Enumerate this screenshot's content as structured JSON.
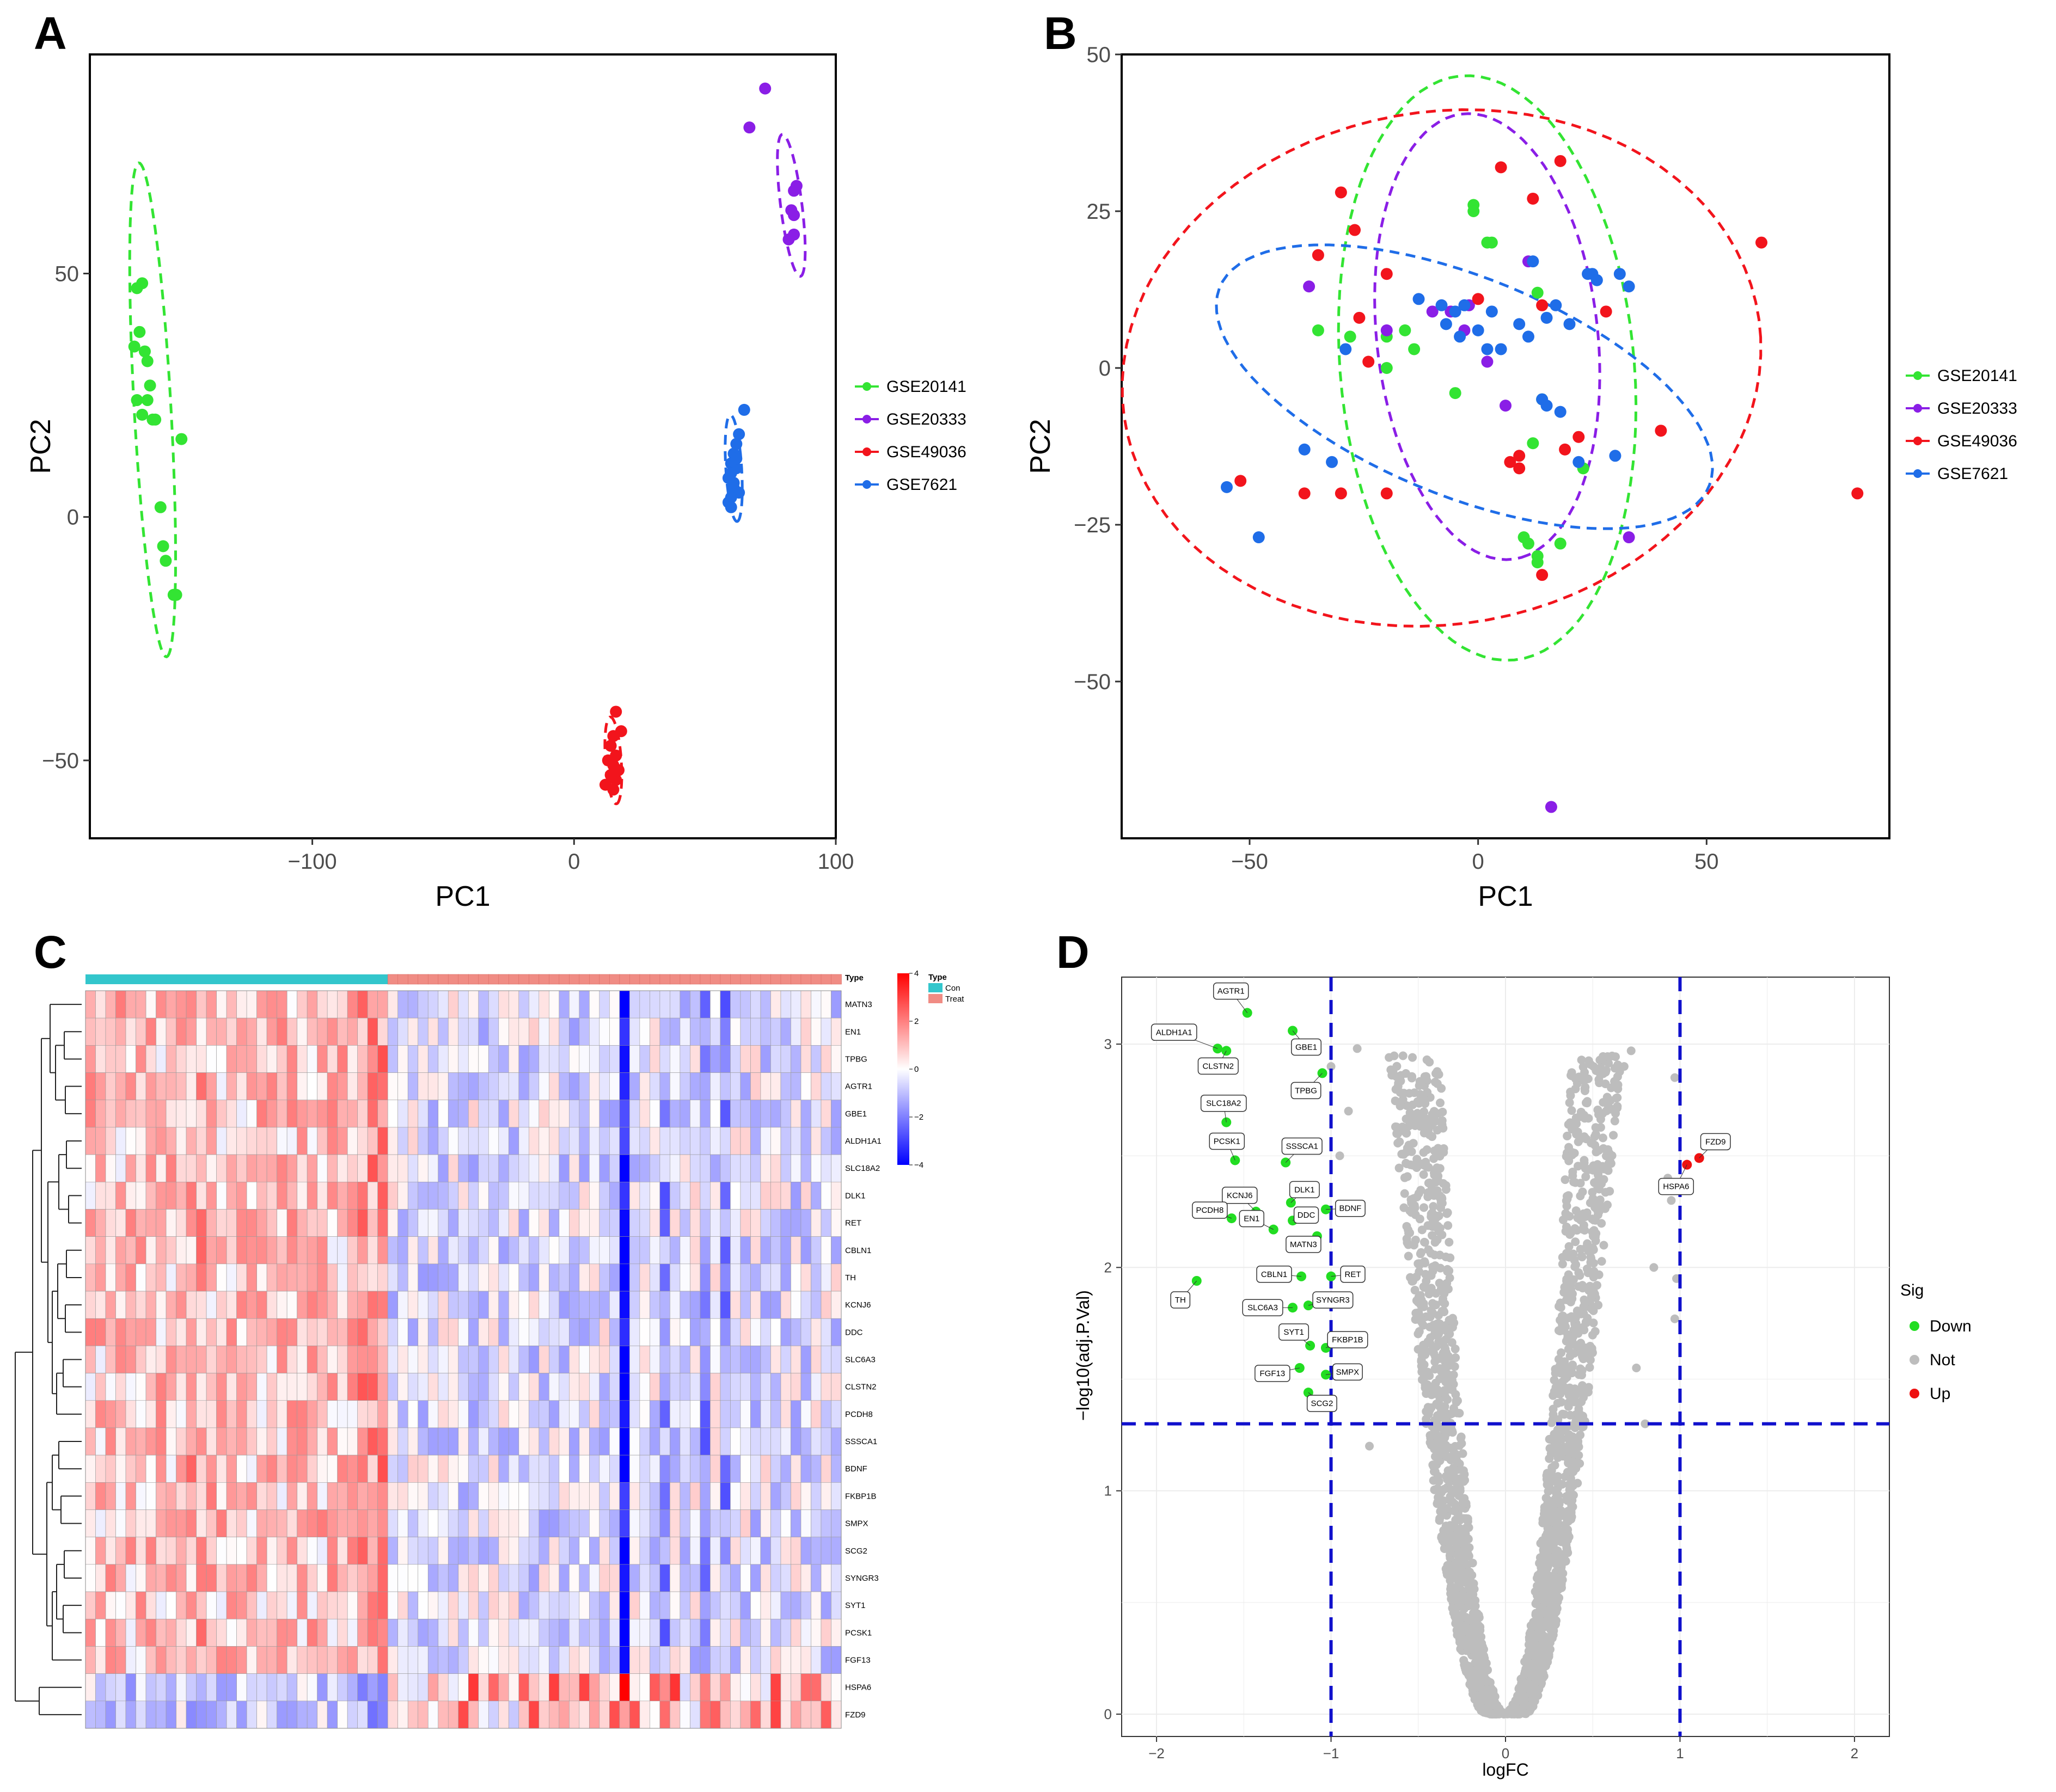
{
  "panels": {
    "A": {
      "label": "A"
    },
    "B": {
      "label": "B"
    },
    "C": {
      "label": "C"
    },
    "D": {
      "label": "D"
    }
  },
  "colors": {
    "GSE20141": "#33e433",
    "GSE20333": "#8a1ee6",
    "GSE49036": "#f2141c",
    "GSE7621": "#1f6de8",
    "Down": "#22dd22",
    "Not": "#bdbdbd",
    "Up": "#ee1111",
    "Con": "#33c6cc",
    "Treat": "#f08c84",
    "hm_high": "#ff0000",
    "hm_mid": "#ffffff",
    "hm_low": "#0000ff",
    "guide": "#1010cc"
  },
  "chart_data": [
    {
      "id": "A",
      "type": "scatter",
      "xlabel": "PC1",
      "ylabel": "PC2",
      "xlim": [
        -185,
        100
      ],
      "ylim": [
        -66,
        95
      ],
      "xticks": [
        -100,
        0,
        100
      ],
      "xtick_labels": [
        "−100",
        "0",
        "100"
      ],
      "yticks": [
        -50,
        0,
        50
      ],
      "ytick_labels": [
        "−50",
        "0",
        "50"
      ],
      "legend": [
        "GSE20141",
        "GSE20333",
        "GSE49036",
        "GSE7621"
      ],
      "series": [
        {
          "name": "GSE20141",
          "x": [
            -167,
            -165,
            -166,
            -164,
            -163,
            -168,
            -162,
            -163,
            -160,
            -165,
            -167,
            -161,
            -150,
            -158,
            -157,
            -156,
            -153,
            -152
          ],
          "y": [
            47,
            48,
            38,
            34,
            32,
            35,
            27,
            24,
            20,
            21,
            24,
            20,
            16,
            2,
            -6,
            -9,
            -16,
            -16
          ],
          "ellipse": {
            "cx": -161,
            "cy": 22,
            "rx": 51,
            "ry": 7,
            "angle": -84
          }
        },
        {
          "name": "GSE20333",
          "x": [
            73,
            67,
            84,
            85,
            83,
            84,
            84,
            82
          ],
          "y": [
            88,
            80,
            67,
            68,
            63,
            62,
            58,
            57
          ],
          "ellipse": {
            "cx": 83,
            "cy": 64,
            "rx": 15,
            "ry": 4,
            "angle": -76
          }
        },
        {
          "name": "GSE49036",
          "x": [
            16,
            18,
            15,
            14,
            16,
            13,
            15,
            17,
            14,
            12,
            15,
            16
          ],
          "y": [
            -40,
            -44,
            -45,
            -47,
            -49,
            -50,
            -51,
            -52,
            -53,
            -55,
            -56,
            -54
          ],
          "ellipse": {
            "cx": 15,
            "cy": -50,
            "rx": 9,
            "ry": 3,
            "angle": -82
          }
        },
        {
          "name": "GSE7621",
          "x": [
            65,
            63,
            62,
            61,
            60,
            62,
            60,
            59,
            61,
            63,
            60,
            59,
            62,
            61,
            60
          ],
          "y": [
            22,
            17,
            15,
            13,
            11,
            10,
            9,
            8,
            6,
            5,
            4,
            3,
            12,
            7,
            2
          ],
          "ellipse": {
            "cx": 61,
            "cy": 10,
            "rx": 11,
            "ry": 3,
            "angle": -83
          }
        }
      ]
    },
    {
      "id": "B",
      "type": "scatter",
      "xlabel": "PC1",
      "ylabel": "PC2",
      "xlim": [
        -78,
        90
      ],
      "ylim": [
        -75,
        50
      ],
      "xticks": [
        -50,
        0,
        50
      ],
      "xtick_labels": [
        "−50",
        "0",
        "50"
      ],
      "yticks": [
        -50,
        -25,
        0,
        25,
        50
      ],
      "ytick_labels": [
        "−50",
        "−25",
        "0",
        "25",
        "50"
      ],
      "legend": [
        "GSE20141",
        "GSE20333",
        "GSE49036",
        "GSE7621"
      ],
      "series": [
        {
          "name": "GSE20141",
          "x": [
            -1,
            -1,
            2,
            3,
            -35,
            -28,
            -14,
            -5,
            -20,
            14,
            13,
            12,
            10,
            11,
            13,
            23,
            18,
            13,
            -16,
            -20
          ],
          "y": [
            26,
            25,
            20,
            20,
            6,
            5,
            3,
            -4,
            5,
            -5,
            12,
            -12,
            -27,
            -28,
            -30,
            -16,
            -28,
            -31,
            6,
            0
          ],
          "ellipse": {
            "cx": 2,
            "cy": 0,
            "rx": 47,
            "ry": 32,
            "angle": -80
          }
        },
        {
          "name": "GSE20333",
          "x": [
            -37,
            -10,
            -2,
            6,
            11,
            -6,
            -20,
            -3,
            16,
            2,
            33
          ],
          "y": [
            13,
            9,
            10,
            -6,
            17,
            9,
            6,
            6,
            -70,
            1,
            -27
          ],
          "ellipse": {
            "cx": 2,
            "cy": 5,
            "rx": 36,
            "ry": 24,
            "angle": -78
          }
        },
        {
          "name": "GSE49036",
          "x": [
            -30,
            -27,
            -20,
            -26,
            -24,
            0,
            5,
            9,
            12,
            19,
            22,
            18,
            28,
            40,
            62,
            83,
            -52,
            -38,
            -30,
            -20,
            9,
            7,
            14,
            14,
            -35
          ],
          "y": [
            28,
            22,
            15,
            8,
            1,
            11,
            32,
            -14,
            27,
            -13,
            -11,
            33,
            9,
            -10,
            20,
            -20,
            -18,
            -20,
            -20,
            -20,
            -16,
            -15,
            -33,
            10,
            18
          ],
          "ellipse": {
            "cx": -8,
            "cy": 0,
            "rx": 70,
            "ry": 41,
            "angle": 4
          }
        },
        {
          "name": "GSE7621",
          "x": [
            -55,
            -48,
            -38,
            -32,
            -29,
            -3,
            -5,
            2,
            5,
            9,
            11,
            14,
            15,
            17,
            18,
            22,
            25,
            26,
            31,
            33,
            -13,
            -7,
            -4,
            0,
            3,
            12,
            15,
            20,
            24,
            30,
            -8
          ],
          "y": [
            -19,
            -27,
            -13,
            -15,
            3,
            10,
            9,
            3,
            3,
            7,
            5,
            -5,
            -6,
            10,
            -7,
            -15,
            15,
            14,
            15,
            13,
            11,
            7,
            5,
            6,
            9,
            17,
            8,
            7,
            15,
            -14,
            10
          ],
          "ellipse": {
            "cx": -3,
            "cy": -3,
            "rx": 56,
            "ry": 18,
            "angle": -15
          }
        }
      ]
    },
    {
      "id": "C",
      "type": "heatmap",
      "genes": [
        "MATN3",
        "EN1",
        "TPBG",
        "AGTR1",
        "GBE1",
        "ALDH1A1",
        "SLC18A2",
        "DLK1",
        "RET",
        "CBLN1",
        "TH",
        "KCNJ6",
        "DDC",
        "SLC6A3",
        "CLSTN2",
        "PCDH8",
        "SSSCA1",
        "BDNF",
        "FKBP1B",
        "SMPX",
        "SCG2",
        "SYNGR3",
        "SYT1",
        "PCSK1",
        "FGF13",
        "HSPA6",
        "FZD9"
      ],
      "n_con": 30,
      "n_treat": 45,
      "annotation_title": "Type",
      "legend_title": "Type",
      "legend_items": [
        "Con",
        "Treat"
      ],
      "scale_ticks": [
        4,
        2,
        0,
        -2,
        -4
      ],
      "scale_labels": [
        "4",
        "2",
        "0",
        "−2",
        "−4"
      ]
    },
    {
      "id": "D",
      "type": "scatter",
      "subtype": "volcano",
      "xlabel": "logFC",
      "ylabel": "−log10(adj.P.Val)",
      "xlim": [
        -2.2,
        2.2
      ],
      "ylim": [
        -0.1,
        3.3
      ],
      "xticks": [
        -2,
        -1,
        0,
        1,
        2
      ],
      "xtick_labels": [
        "−2",
        "−1",
        "0",
        "1",
        "2"
      ],
      "yticks": [
        0,
        1,
        2,
        3
      ],
      "ytick_labels": [
        "0",
        "1",
        "2",
        "3"
      ],
      "logfc_cutoff": 1,
      "p_cutoff": 1.3,
      "legend_title": "Sig",
      "legend": [
        "Down",
        "Not",
        "Up"
      ],
      "down_genes": [
        {
          "gene": "AGTR1",
          "x": -1.48,
          "y": 3.14
        },
        {
          "gene": "ALDH1A1",
          "x": -1.65,
          "y": 2.98
        },
        {
          "gene": "CLSTN2",
          "x": -1.6,
          "y": 2.97
        },
        {
          "gene": "GBE1",
          "x": -1.22,
          "y": 3.06
        },
        {
          "gene": "TPBG",
          "x": -1.05,
          "y": 2.87
        },
        {
          "gene": "SLC18A2",
          "x": -1.6,
          "y": 2.65
        },
        {
          "gene": "PCSK1",
          "x": -1.55,
          "y": 2.48
        },
        {
          "gene": "SSSCA1",
          "x": -1.26,
          "y": 2.47
        },
        {
          "gene": "KCNJ6",
          "x": -1.43,
          "y": 2.25
        },
        {
          "gene": "DLK1",
          "x": -1.23,
          "y": 2.29
        },
        {
          "gene": "BDNF",
          "x": -1.03,
          "y": 2.26
        },
        {
          "gene": "PCDH8",
          "x": -1.57,
          "y": 2.22
        },
        {
          "gene": "DDC",
          "x": -1.22,
          "y": 2.21
        },
        {
          "gene": "EN1",
          "x": -1.33,
          "y": 2.17
        },
        {
          "gene": "MATN3",
          "x": -1.08,
          "y": 2.14
        },
        {
          "gene": "TH",
          "x": -1.77,
          "y": 1.94
        },
        {
          "gene": "CBLN1",
          "x": -1.17,
          "y": 1.96
        },
        {
          "gene": "RET",
          "x": -1.0,
          "y": 1.96
        },
        {
          "gene": "SYNGR3",
          "x": -1.13,
          "y": 1.83
        },
        {
          "gene": "SLC6A3",
          "x": -1.22,
          "y": 1.82
        },
        {
          "gene": "SYT1",
          "x": -1.12,
          "y": 1.65
        },
        {
          "gene": "FKBP1B",
          "x": -1.03,
          "y": 1.64
        },
        {
          "gene": "FGF13",
          "x": -1.18,
          "y": 1.55
        },
        {
          "gene": "SMPX",
          "x": -1.03,
          "y": 1.52
        },
        {
          "gene": "SCG2",
          "x": -1.13,
          "y": 1.44
        }
      ],
      "up_genes": [
        {
          "gene": "FZD9",
          "x": 1.11,
          "y": 2.49
        },
        {
          "gene": "HSPA6",
          "x": 1.04,
          "y": 2.46
        }
      ]
    }
  ]
}
